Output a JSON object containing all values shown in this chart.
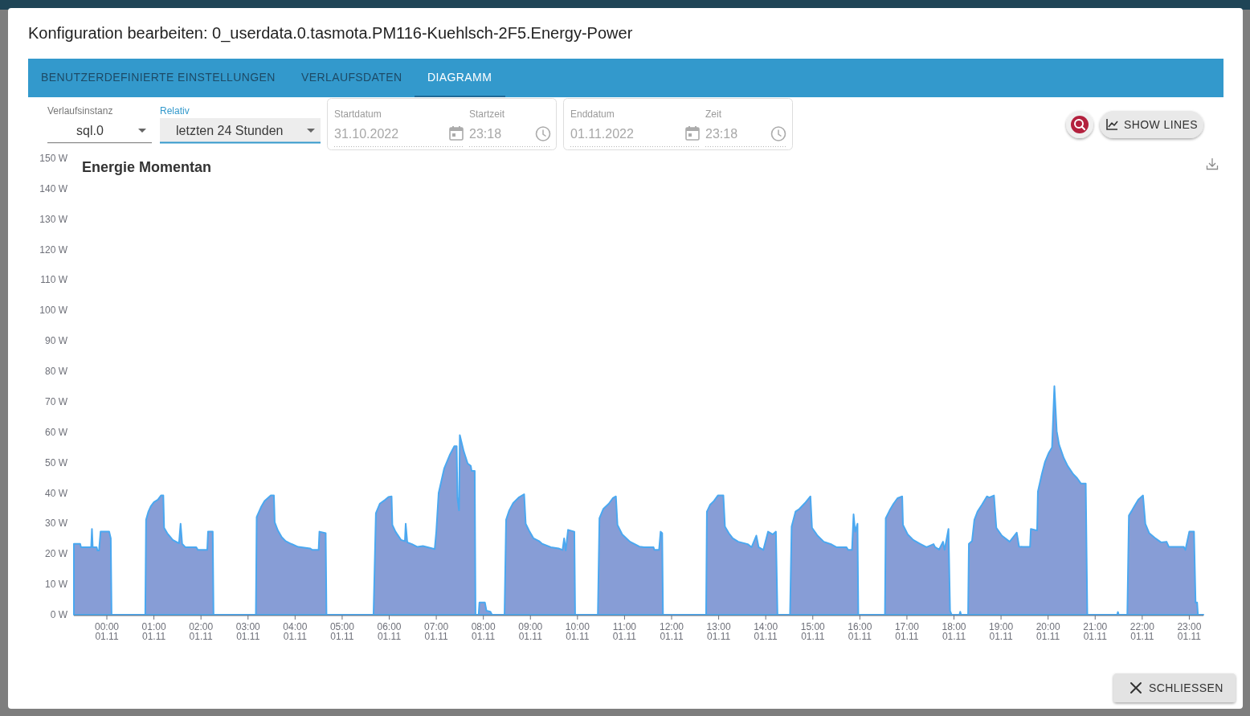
{
  "chart_data": [
    {
      "type": "other",
      "title": "Konfiguration bearbeiten: 0_userdata.0.tasmota.PM116-Kuehlsch-2F5.Energy-Power",
      "annotations": [
        "BENUTZERDEFINIERTE EINSTELLUNGEN",
        "VERLAUFSDATEN",
        "DIAGRAMM",
        "Verlaufsinstanz",
        "sql.0",
        "Relativ",
        "letzten 24 Stunden",
        "Startdatum",
        "31.10.2022",
        "Startzeit",
        "23:18",
        "Enddatum",
        "01.11.2022",
        "Zeit",
        "23:18",
        "SHOW LINES",
        "SCHLIESSEN"
      ]
    },
    {
      "type": "area",
      "title": "Energie Momentan",
      "x": [
        "2022-10-31T23:18",
        "2022-10-31T23:26",
        "2022-10-31T23:27",
        "2022-10-31T23:40",
        "2022-10-31T23:41",
        "2022-10-31T23:42",
        "2022-10-31T23:47",
        "2022-10-31T23:48",
        "2022-10-31T23:50",
        "2022-10-31T23:52",
        "2022-11-01T00:03",
        "2022-11-01T00:05",
        "2022-11-01T00:06",
        "2022-11-01T00:49",
        "2022-11-01T00:50",
        "2022-11-01T00:53",
        "2022-11-01T00:56",
        "2022-11-01T01:00",
        "2022-11-01T01:05",
        "2022-11-01T01:09",
        "2022-11-01T01:12",
        "2022-11-01T01:13",
        "2022-11-01T01:17",
        "2022-11-01T01:24",
        "2022-11-01T01:32",
        "2022-11-01T01:34",
        "2022-11-01T01:36",
        "2022-11-01T01:40",
        "2022-11-01T01:54",
        "2022-11-01T01:56",
        "2022-11-01T02:08",
        "2022-11-01T02:09",
        "2022-11-01T02:15",
        "2022-11-01T02:16",
        "2022-11-01T03:10",
        "2022-11-01T03:11",
        "2022-11-01T03:17",
        "2022-11-01T03:21",
        "2022-11-01T03:29",
        "2022-11-01T03:33",
        "2022-11-01T03:34",
        "2022-11-01T03:38",
        "2022-11-01T03:43",
        "2022-11-01T03:48",
        "2022-11-01T03:55",
        "2022-11-01T04:04",
        "2022-11-01T04:19",
        "2022-11-01T04:22",
        "2022-11-01T04:30",
        "2022-11-01T04:31",
        "2022-11-01T04:39",
        "2022-11-01T04:40",
        "2022-11-01T05:40",
        "2022-11-01T05:43",
        "2022-11-01T05:48",
        "2022-11-01T05:55",
        "2022-11-01T05:59",
        "2022-11-01T06:03",
        "2022-11-01T06:04",
        "2022-11-01T06:08",
        "2022-11-01T06:15",
        "2022-11-01T06:20",
        "2022-11-01T06:21",
        "2022-11-01T06:23",
        "2022-11-01T06:29",
        "2022-11-01T06:36",
        "2022-11-01T06:43",
        "2022-11-01T06:58",
        "2022-11-01T07:00",
        "2022-11-01T07:03",
        "2022-11-01T07:10",
        "2022-11-01T07:17",
        "2022-11-01T07:23",
        "2022-11-01T07:26",
        "2022-11-01T07:27",
        "2022-11-01T07:29",
        "2022-11-01T07:30",
        "2022-11-01T07:35",
        "2022-11-01T07:40",
        "2022-11-01T07:44",
        "2022-11-01T07:45",
        "2022-11-01T07:49",
        "2022-11-01T07:50",
        "2022-11-01T07:54",
        "2022-11-01T07:55",
        "2022-11-01T08:02",
        "2022-11-01T08:04",
        "2022-11-01T08:09",
        "2022-11-01T08:11",
        "2022-11-01T08:27",
        "2022-11-01T08:29",
        "2022-11-01T08:33",
        "2022-11-01T08:38",
        "2022-11-01T08:45",
        "2022-11-01T08:52",
        "2022-11-01T08:54",
        "2022-11-01T08:59",
        "2022-11-01T09:04",
        "2022-11-01T09:11",
        "2022-11-01T09:15",
        "2022-11-01T09:26",
        "2022-11-01T09:36",
        "2022-11-01T09:41",
        "2022-11-01T09:43",
        "2022-11-01T09:45",
        "2022-11-01T09:48",
        "2022-11-01T09:56",
        "2022-11-01T09:57",
        "2022-11-01T10:26",
        "2022-11-01T10:28",
        "2022-11-01T10:33",
        "2022-11-01T10:40",
        "2022-11-01T10:45",
        "2022-11-01T10:49",
        "2022-11-01T10:51",
        "2022-11-01T10:57",
        "2022-11-01T11:07",
        "2022-11-01T11:19",
        "2022-11-01T11:25",
        "2022-11-01T11:37",
        "2022-11-01T11:38",
        "2022-11-01T11:44",
        "2022-11-01T11:46",
        "2022-11-01T11:48",
        "2022-11-01T11:49",
        "2022-11-01T12:44",
        "2022-11-01T12:45",
        "2022-11-01T12:49",
        "2022-11-01T12:54",
        "2022-11-01T12:59",
        "2022-11-01T13:06",
        "2022-11-01T13:08",
        "2022-11-01T13:13",
        "2022-11-01T13:18",
        "2022-11-01T13:25",
        "2022-11-01T13:37",
        "2022-11-01T13:42",
        "2022-11-01T13:48",
        "2022-11-01T13:51",
        "2022-11-01T13:57",
        "2022-11-01T14:03",
        "2022-11-01T14:09",
        "2022-11-01T14:13",
        "2022-11-01T14:15",
        "2022-11-01T14:31",
        "2022-11-01T14:33",
        "2022-11-01T14:38",
        "2022-11-01T14:43",
        "2022-11-01T14:50",
        "2022-11-01T14:57",
        "2022-11-01T14:59",
        "2022-11-01T15:06",
        "2022-11-01T15:14",
        "2022-11-01T15:24",
        "2022-11-01T15:30",
        "2022-11-01T15:43",
        "2022-11-01T15:45",
        "2022-11-01T15:50",
        "2022-11-01T15:52",
        "2022-11-01T15:54",
        "2022-11-01T15:57",
        "2022-11-01T15:58",
        "2022-11-01T16:32",
        "2022-11-01T16:33",
        "2022-11-01T16:38",
        "2022-11-01T16:43",
        "2022-11-01T16:48",
        "2022-11-01T16:54",
        "2022-11-01T16:55",
        "2022-11-01T17:01",
        "2022-11-01T17:08",
        "2022-11-01T17:17",
        "2022-11-01T17:25",
        "2022-11-01T17:34",
        "2022-11-01T17:36",
        "2022-11-01T17:41",
        "2022-11-01T17:46",
        "2022-11-01T17:48",
        "2022-11-01T17:53",
        "2022-11-01T17:55",
        "2022-11-01T17:57",
        "2022-11-01T18:07",
        "2022-11-01T18:08",
        "2022-11-01T18:09",
        "2022-11-01T18:18",
        "2022-11-01T18:19",
        "2022-11-01T18:23",
        "2022-11-01T18:26",
        "2022-11-01T18:30",
        "2022-11-01T18:36",
        "2022-11-01T18:42",
        "2022-11-01T18:45",
        "2022-11-01T18:51",
        "2022-11-01T18:54",
        "2022-11-01T19:01",
        "2022-11-01T19:11",
        "2022-11-01T19:20",
        "2022-11-01T19:23",
        "2022-11-01T19:28",
        "2022-11-01T19:37",
        "2022-11-01T19:38",
        "2022-11-01T19:46",
        "2022-11-01T19:47",
        "2022-11-01T19:52",
        "2022-11-01T19:56",
        "2022-11-01T20:01",
        "2022-11-01T20:05",
        "2022-11-01T20:08",
        "2022-11-01T20:11",
        "2022-11-01T20:14",
        "2022-11-01T20:20",
        "2022-11-01T20:25",
        "2022-11-01T20:32",
        "2022-11-01T20:37",
        "2022-11-01T20:42",
        "2022-11-01T20:48",
        "2022-11-01T20:50",
        "2022-11-01T21:28",
        "2022-11-01T21:29",
        "2022-11-01T21:30",
        "2022-11-01T21:41",
        "2022-11-01T21:43",
        "2022-11-01T21:47",
        "2022-11-01T21:51",
        "2022-11-01T21:55",
        "2022-11-01T22:01",
        "2022-11-01T22:04",
        "2022-11-01T22:09",
        "2022-11-01T22:16",
        "2022-11-01T22:24",
        "2022-11-01T22:31",
        "2022-11-01T22:34",
        "2022-11-01T22:53",
        "2022-11-01T22:55",
        "2022-11-01T23:00",
        "2022-11-01T23:06",
        "2022-11-01T23:08",
        "2022-11-01T23:10",
        "2022-11-01T23:11",
        "2022-11-01T23:18"
      ],
      "series": [
        {
          "color": "#879dd6",
          "values": [
            23.3,
            23.3,
            22.2,
            22.2,
            28.2,
            22.2,
            22.2,
            21.1,
            21.1,
            27.3,
            27.3,
            25.1,
            0,
            0,
            31.2,
            33.9,
            35.6,
            37.0,
            37.8,
            39.2,
            39.2,
            28.6,
            26.8,
            24.6,
            23.5,
            29.9,
            23.3,
            22.2,
            22.2,
            21.3,
            21.3,
            27.3,
            27.3,
            0,
            0,
            32.1,
            35.6,
            37.4,
            39.2,
            39.2,
            30.4,
            27.7,
            25.5,
            24.2,
            23.3,
            22.3,
            21.8,
            21.3,
            21.3,
            27.3,
            26.8,
            0,
            0,
            33.4,
            36.5,
            37.8,
            38.7,
            38.9,
            29.5,
            27.3,
            24.6,
            24.2,
            29.9,
            23.8,
            23.2,
            22.3,
            22.6,
            21.6,
            27.3,
            40.0,
            48.0,
            52.4,
            55.4,
            55.4,
            38.3,
            34.3,
            59.0,
            53.7,
            49.7,
            48.9,
            47.3,
            47.3,
            0,
            0,
            4.0,
            4.0,
            1.3,
            1.0,
            0,
            0,
            31.2,
            34.3,
            36.7,
            38.5,
            39.6,
            29.9,
            27.3,
            25.1,
            24.2,
            23.3,
            22.2,
            21.8,
            21.3,
            25.1,
            21.1,
            27.9,
            27.3,
            0,
            0,
            31.7,
            34.8,
            36.5,
            38.3,
            38.9,
            29.5,
            26.4,
            24.0,
            22.4,
            22.2,
            22.2,
            21.3,
            21.3,
            27.3,
            26.8,
            0,
            0,
            33.9,
            36.1,
            37.4,
            39.2,
            39.2,
            29.0,
            26.8,
            25.1,
            24.0,
            23.2,
            22.2,
            26.0,
            22.2,
            21.3,
            27.3,
            26.4,
            27.3,
            0,
            0,
            29.0,
            33.9,
            34.8,
            36.7,
            38.9,
            28.6,
            26.0,
            24.0,
            23.1,
            22.2,
            22.2,
            21.3,
            21.3,
            33.0,
            27.3,
            29.9,
            0,
            0,
            31.7,
            34.3,
            36.5,
            38.3,
            38.9,
            29.5,
            26.4,
            24.6,
            23.3,
            22.2,
            23.2,
            22.2,
            21.4,
            24.0,
            21.3,
            28.2,
            1.3,
            0,
            0,
            1.0,
            0,
            0,
            23.3,
            24.2,
            31.2,
            33.9,
            36.3,
            38.9,
            38.5,
            39.2,
            28.6,
            26.0,
            24.0,
            27.0,
            22.4,
            22.3,
            22.3,
            28.2,
            27.7,
            40.5,
            46.2,
            50.2,
            53.3,
            55.0,
            75.1,
            60.3,
            55.9,
            51.5,
            48.9,
            46.2,
            44.9,
            43.1,
            43.1,
            0,
            0,
            0.9,
            0,
            0,
            32.6,
            34.3,
            36.1,
            37.8,
            39.2,
            29.9,
            26.8,
            25.3,
            23.8,
            24.0,
            22.3,
            22.3,
            21.3,
            27.3,
            27.3,
            4.0,
            4.0,
            0,
            0
          ]
        }
      ],
      "xlim": [
        "2022-10-31T23:18",
        "2022-11-01T23:18"
      ],
      "xticks": [
        {
          "value": "2022-11-01T00:00",
          "label": "00:00\n01.11"
        },
        {
          "value": "2022-11-01T01:00",
          "label": "01:00\n01.11"
        },
        {
          "value": "2022-11-01T02:00",
          "label": "02:00\n01.11"
        },
        {
          "value": "2022-11-01T03:00",
          "label": "03:00\n01.11"
        },
        {
          "value": "2022-11-01T04:00",
          "label": "04:00\n01.11"
        },
        {
          "value": "2022-11-01T05:00",
          "label": "05:00\n01.11"
        },
        {
          "value": "2022-11-01T06:00",
          "label": "06:00\n01.11"
        },
        {
          "value": "2022-11-01T07:00",
          "label": "07:00\n01.11"
        },
        {
          "value": "2022-11-01T08:00",
          "label": "08:00\n01.11"
        },
        {
          "value": "2022-11-01T09:00",
          "label": "09:00\n01.11"
        },
        {
          "value": "2022-11-01T10:00",
          "label": "10:00\n01.11"
        },
        {
          "value": "2022-11-01T11:00",
          "label": "11:00\n01.11"
        },
        {
          "value": "2022-11-01T12:00",
          "label": "12:00\n01.11"
        },
        {
          "value": "2022-11-01T13:00",
          "label": "13:00\n01.11"
        },
        {
          "value": "2022-11-01T14:00",
          "label": "14:00\n01.11"
        },
        {
          "value": "2022-11-01T15:00",
          "label": "15:00\n01.11"
        },
        {
          "value": "2022-11-01T16:00",
          "label": "16:00\n01.11"
        },
        {
          "value": "2022-11-01T17:00",
          "label": "17:00\n01.11"
        },
        {
          "value": "2022-11-01T18:00",
          "label": "18:00\n01.11"
        },
        {
          "value": "2022-11-01T19:00",
          "label": "19:00\n01.11"
        },
        {
          "value": "2022-11-01T20:00",
          "label": "20:00\n01.11"
        },
        {
          "value": "2022-11-01T21:00",
          "label": "21:00\n01.11"
        },
        {
          "value": "2022-11-01T22:00",
          "label": "22:00\n01.11"
        },
        {
          "value": "2022-11-01T23:00",
          "label": "23:00\n01.11"
        }
      ],
      "ylim": [
        0,
        150
      ],
      "yticks": [
        {
          "value": 0,
          "label": "0 W"
        },
        {
          "value": 10,
          "label": "10 W"
        },
        {
          "value": 20,
          "label": "20 W"
        },
        {
          "value": 30,
          "label": "30 W"
        },
        {
          "value": 40,
          "label": "40 W"
        },
        {
          "value": 50,
          "label": "50 W"
        },
        {
          "value": 60,
          "label": "60 W"
        },
        {
          "value": 70,
          "label": "70 W"
        },
        {
          "value": 80,
          "label": "80 W"
        },
        {
          "value": 90,
          "label": "90 W"
        },
        {
          "value": 100,
          "label": "100 W"
        },
        {
          "value": 110,
          "label": "110 W"
        },
        {
          "value": 120,
          "label": "120 W"
        },
        {
          "value": 130,
          "label": "130 W"
        },
        {
          "value": 140,
          "label": "140 W"
        },
        {
          "value": 150,
          "label": "150 W"
        }
      ]
    }
  ]
}
